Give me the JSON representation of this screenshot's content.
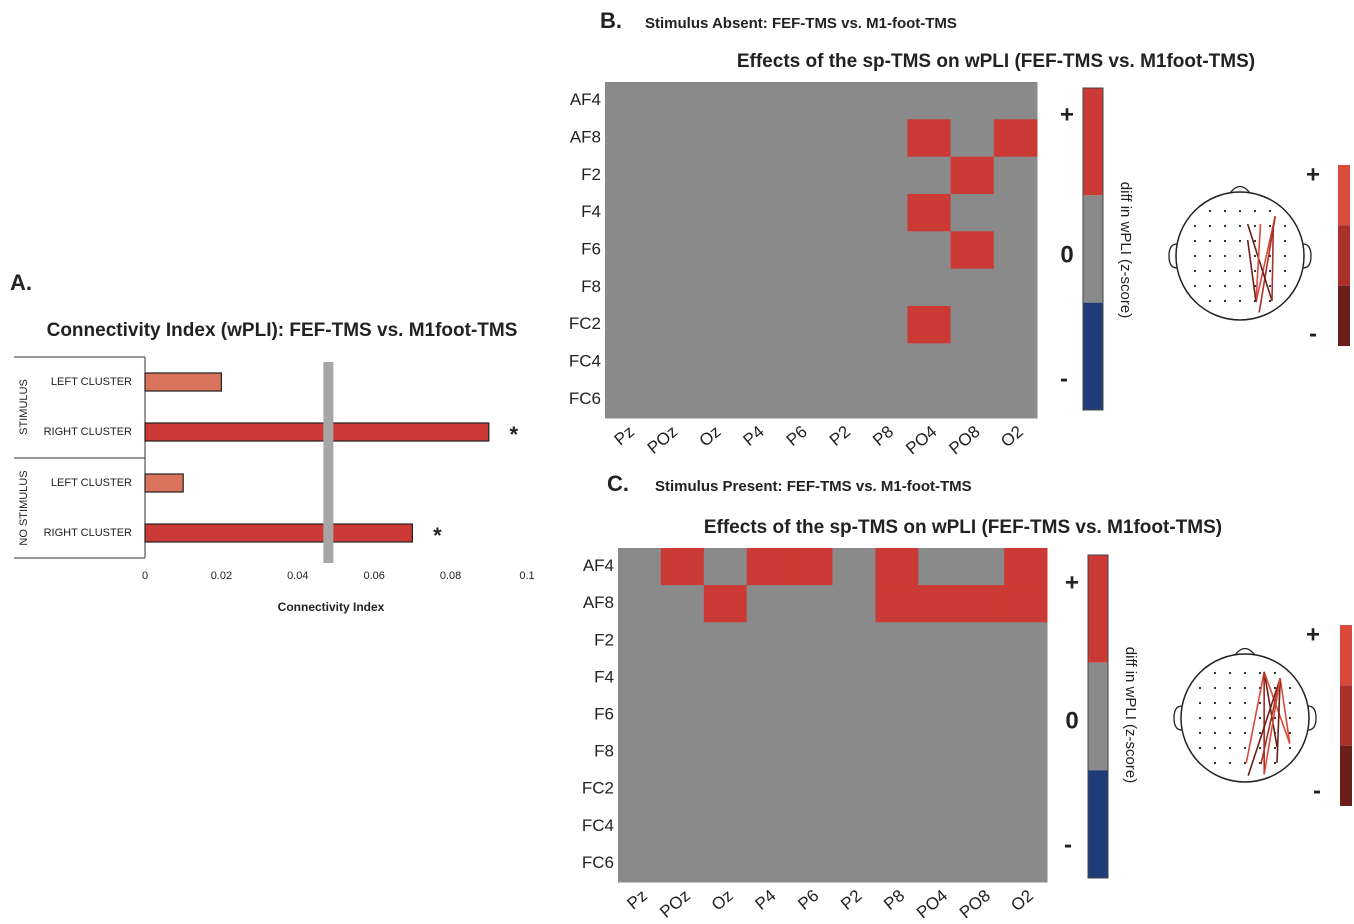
{
  "chart_data": [
    {
      "type": "bar",
      "orientation": "horizontal",
      "panel_label": "A.",
      "title": "Connectivity Index (wPLI): FEF-TMS vs. M1foot-TMS",
      "groups": [
        "STIMULUS",
        "NO STIMULUS"
      ],
      "categories": [
        "LEFT CLUSTER",
        "RIGHT CLUSTER",
        "LEFT CLUSTER",
        "RIGHT CLUSTER"
      ],
      "values": [
        0.02,
        0.09,
        0.01,
        0.07
      ],
      "colors": [
        "#d9735b",
        "#cc3a35",
        "#d9735b",
        "#cc3a35"
      ],
      "value_annotations": [
        {
          "index": 1,
          "text": "*"
        },
        {
          "index": 3,
          "text": "*"
        }
      ],
      "reference_line": {
        "value": 0.048,
        "color": "#a6a6a6"
      },
      "xlabel": "Connectivity Index",
      "xlim": [
        0,
        0.1
      ],
      "xticks": [
        0,
        0.02,
        0.04,
        0.06,
        0.08,
        0.1
      ]
    },
    {
      "type": "heatmap",
      "panel_label": "B.",
      "subtitle": "Stimulus Absent: FEF-TMS vs. M1-foot-TMS",
      "title": "Effects of the sp-TMS on wPLI (FEF-TMS vs. M1foot-TMS)",
      "rows": [
        "AF4",
        "AF8",
        "F2",
        "F4",
        "F6",
        "F8",
        "FC2",
        "FC4",
        "FC6"
      ],
      "columns": [
        "Pz",
        "POz",
        "Oz",
        "P4",
        "P6",
        "P2",
        "P8",
        "PO4",
        "PO8",
        "O2"
      ],
      "values": [
        [
          0,
          0,
          0,
          0,
          0,
          0,
          0,
          0,
          0,
          0
        ],
        [
          0,
          0,
          0,
          0,
          0,
          0,
          0,
          1,
          0,
          1
        ],
        [
          0,
          0,
          0,
          0,
          0,
          0,
          0,
          0,
          1,
          0
        ],
        [
          0,
          0,
          0,
          0,
          0,
          0,
          0,
          1,
          0,
          0
        ],
        [
          0,
          0,
          0,
          0,
          0,
          0,
          0,
          0,
          1,
          0
        ],
        [
          0,
          0,
          0,
          0,
          0,
          0,
          0,
          0,
          0,
          0
        ],
        [
          0,
          0,
          0,
          0,
          0,
          0,
          0,
          1,
          0,
          0
        ],
        [
          0,
          0,
          0,
          0,
          0,
          0,
          0,
          0,
          0,
          0
        ],
        [
          0,
          0,
          0,
          0,
          0,
          0,
          0,
          0,
          0,
          0
        ]
      ],
      "colorbar": {
        "label": "diff in wPLI (z-score)",
        "levels": [
          {
            "value": 1,
            "label": "+",
            "color": "#cc3a35"
          },
          {
            "value": 0,
            "label": "0",
            "color": "#8a8a8a"
          },
          {
            "value": -1,
            "label": "-",
            "color": "#1f3c78"
          }
        ]
      },
      "topo_colorbar": {
        "labels": [
          "+",
          "-"
        ],
        "colors": [
          "#d94a3a",
          "#a8312a",
          "#6b1e1a"
        ]
      }
    },
    {
      "type": "heatmap",
      "panel_label": "C.",
      "subtitle": "Stimulus Present: FEF-TMS vs. M1-foot-TMS",
      "title": "Effects of the sp-TMS on wPLI (FEF-TMS vs. M1foot-TMS)",
      "rows": [
        "AF4",
        "AF8",
        "F2",
        "F4",
        "F6",
        "F8",
        "FC2",
        "FC4",
        "FC6"
      ],
      "columns": [
        "Pz",
        "POz",
        "Oz",
        "P4",
        "P6",
        "P2",
        "P8",
        "PO4",
        "PO8",
        "O2"
      ],
      "values": [
        [
          0,
          1,
          0,
          1,
          1,
          0,
          1,
          0,
          0,
          1
        ],
        [
          0,
          0,
          1,
          0,
          0,
          0,
          1,
          1,
          1,
          1
        ],
        [
          0,
          0,
          0,
          0,
          0,
          0,
          0,
          0,
          0,
          0
        ],
        [
          0,
          0,
          0,
          0,
          0,
          0,
          0,
          0,
          0,
          0
        ],
        [
          0,
          0,
          0,
          0,
          0,
          0,
          0,
          0,
          0,
          0
        ],
        [
          0,
          0,
          0,
          0,
          0,
          0,
          0,
          0,
          0,
          0
        ],
        [
          0,
          0,
          0,
          0,
          0,
          0,
          0,
          0,
          0,
          0
        ],
        [
          0,
          0,
          0,
          0,
          0,
          0,
          0,
          0,
          0,
          0
        ],
        [
          0,
          0,
          0,
          0,
          0,
          0,
          0,
          0,
          0,
          0
        ]
      ],
      "colorbar": {
        "label": "diff in wPLI (z-score)",
        "levels": [
          {
            "value": 1,
            "label": "+",
            "color": "#cc3a35"
          },
          {
            "value": 0,
            "label": "0",
            "color": "#8a8a8a"
          },
          {
            "value": -1,
            "label": "-",
            "color": "#1f3c78"
          }
        ]
      },
      "topo_colorbar": {
        "labels": [
          "+",
          "-"
        ],
        "colors": [
          "#d94a3a",
          "#a8312a",
          "#6b1e1a"
        ]
      }
    }
  ]
}
